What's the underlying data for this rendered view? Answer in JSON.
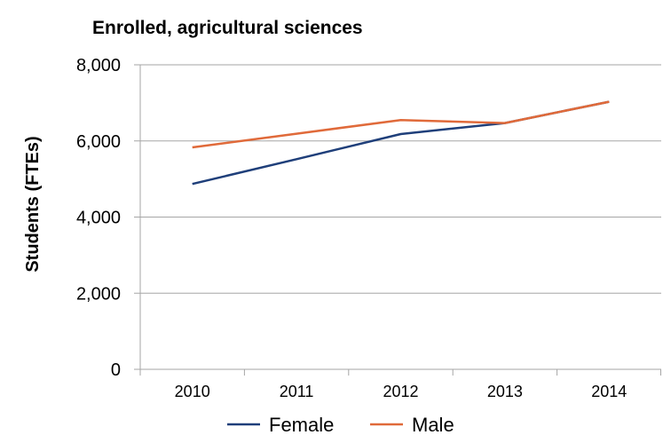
{
  "chart_data": {
    "type": "line",
    "title": "Enrolled, agricultural sciences",
    "xlabel": "",
    "ylabel": "Students (FTEs)",
    "categories": [
      "2010",
      "2011",
      "2012",
      "2013",
      "2014"
    ],
    "ylim": [
      0,
      8000
    ],
    "yticks": [
      0,
      2000,
      4000,
      6000,
      8000
    ],
    "ytick_labels": [
      "0",
      "2,000",
      "4,000",
      "6,000",
      "8,000"
    ],
    "grid": true,
    "legend_position": "bottom",
    "series": [
      {
        "name": "Female",
        "color": "#1f3f7a",
        "values": [
          4870,
          5520,
          6180,
          6470,
          7030
        ]
      },
      {
        "name": "Male",
        "color": "#e06a3a",
        "values": [
          5830,
          6190,
          6550,
          6470,
          7030
        ]
      }
    ]
  }
}
